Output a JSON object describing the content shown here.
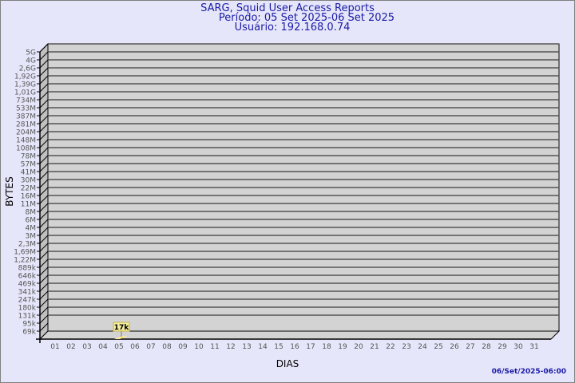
{
  "header": {
    "title": "SARG, Squid User Access Reports",
    "period": "Período: 05 Set 2025-06 Set 2025",
    "user": "Usuário: 192.168.0.74"
  },
  "footer": {
    "timestamp": "06/Set/2025-06:00"
  },
  "chart_data": {
    "type": "bar",
    "xlabel": "DIAS",
    "ylabel": "BYTES",
    "y_scale": "log",
    "y_ticks": [
      "5G",
      "4G",
      "2,6G",
      "1,92G",
      "1,39G",
      "1,01G",
      "734M",
      "533M",
      "387M",
      "281M",
      "204M",
      "148M",
      "108M",
      "78M",
      "57M",
      "41M",
      "30M",
      "22M",
      "16M",
      "11M",
      "8M",
      "6M",
      "4M",
      "3M",
      "2,3M",
      "1,69M",
      "1,22M",
      "889k",
      "646k",
      "469k",
      "341k",
      "247k",
      "180k",
      "131k",
      "95k",
      "69k"
    ],
    "categories": [
      "01",
      "02",
      "03",
      "04",
      "05",
      "06",
      "07",
      "08",
      "09",
      "10",
      "11",
      "12",
      "13",
      "14",
      "15",
      "16",
      "17",
      "18",
      "19",
      "20",
      "21",
      "22",
      "23",
      "24",
      "25",
      "26",
      "27",
      "28",
      "29",
      "30",
      "31"
    ],
    "values": [
      null,
      null,
      null,
      null,
      17000,
      null,
      null,
      null,
      null,
      null,
      null,
      null,
      null,
      null,
      null,
      null,
      null,
      null,
      null,
      null,
      null,
      null,
      null,
      null,
      null,
      null,
      null,
      null,
      null,
      null,
      null
    ],
    "data_labels": {
      "05": "17k"
    },
    "grid": true,
    "colors": {
      "plot": "#d3d3d3",
      "bar": "#ffe88c",
      "label_bg": "#f5f0a0",
      "text": "#1a1aa6"
    }
  }
}
